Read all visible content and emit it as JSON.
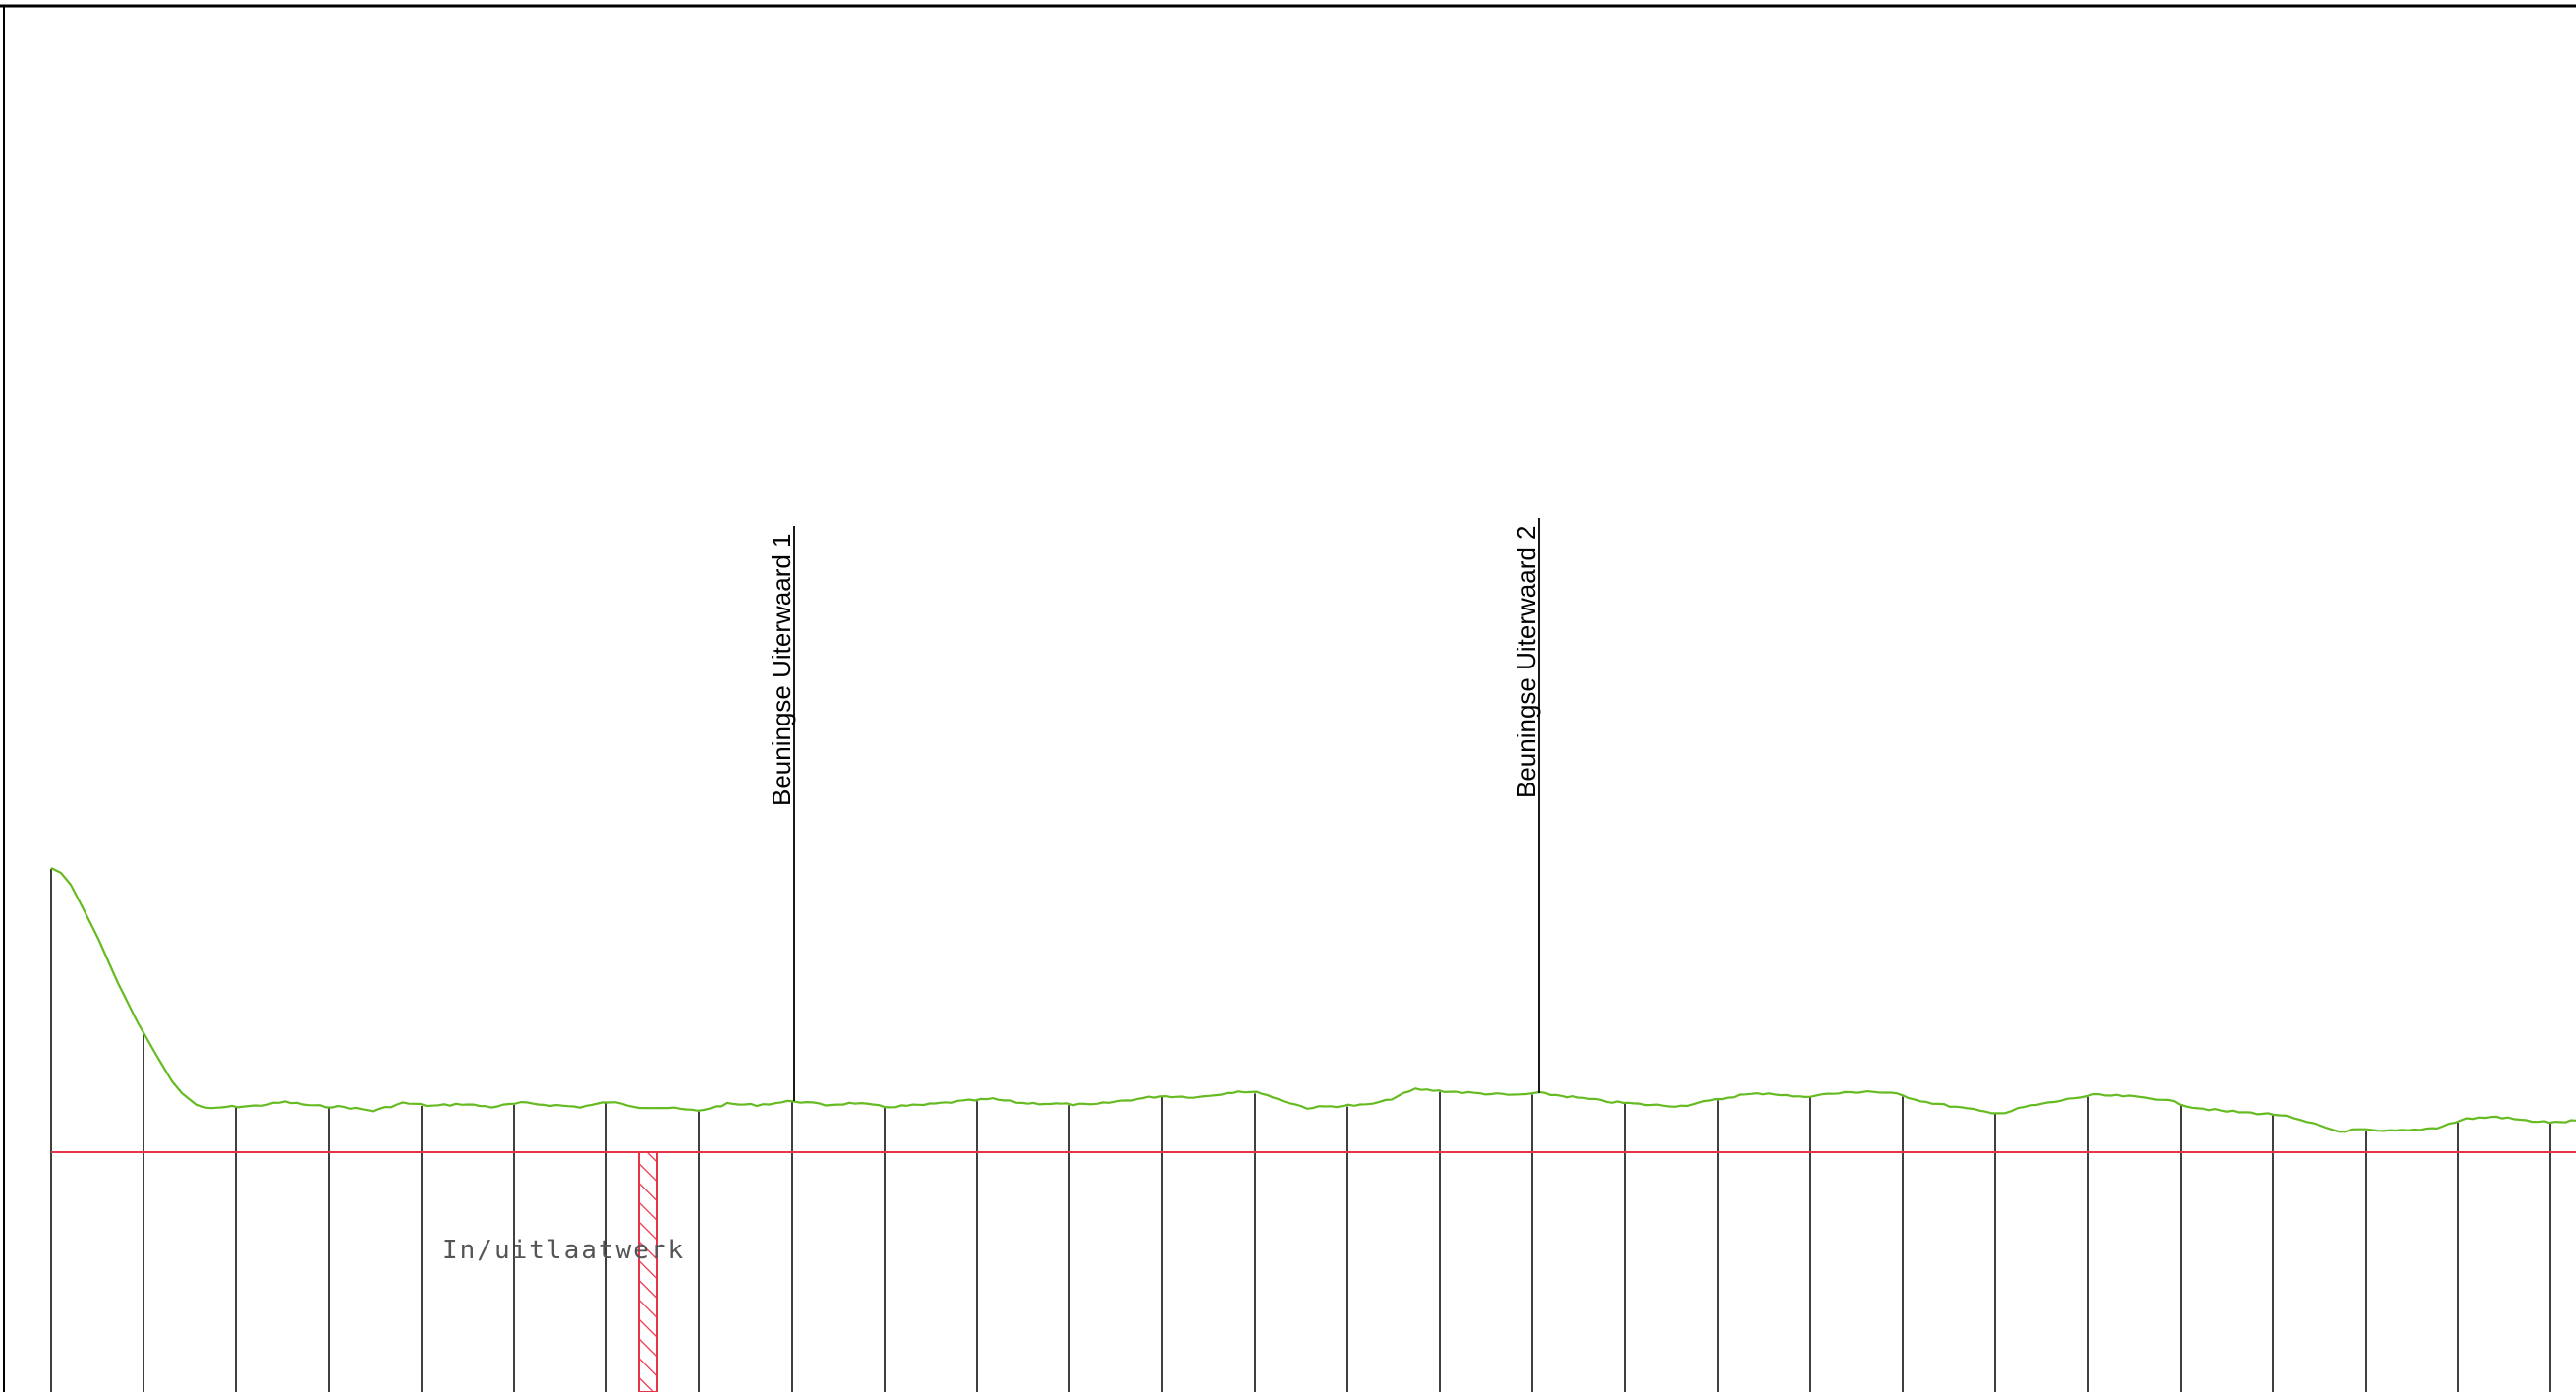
{
  "drawing": {
    "annotations": [
      {
        "id": "beuningse-uiterwaard-1",
        "text": "Beuningse Uiterwaard 1"
      },
      {
        "id": "beuningse-uiterwaard-2",
        "text": "Beuningse Uiterwaard 2"
      }
    ],
    "structure_label": "In/uitlaatwerk",
    "colors": {
      "terrain_profile": "#66bb22",
      "reference_line": "#e8334a",
      "structure_hatch": "#e8334a",
      "lines": "#000000"
    }
  }
}
